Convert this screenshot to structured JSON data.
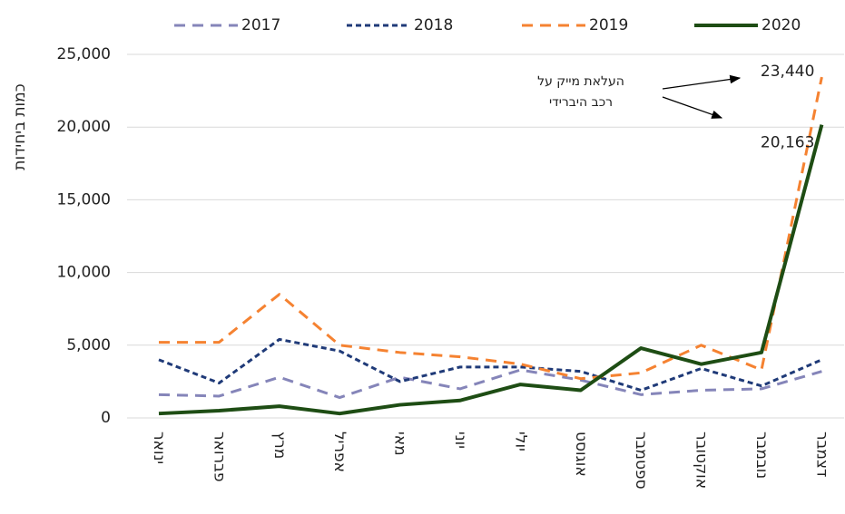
{
  "chart_data": {
    "type": "line",
    "y_label": "כמות ביחידות",
    "categories": [
      "ינואר",
      "פברואר",
      "מרץ",
      "אפריל",
      "מאי",
      "יוני",
      "יולי",
      "אוגוסט",
      "ספטמבר",
      "אוקטובר",
      "נובמבר",
      "דצמבר"
    ],
    "series": [
      {
        "name": "2017",
        "color": "#8585b9",
        "dash": "12,8",
        "width": 3,
        "values": [
          1600,
          1500,
          2800,
          1400,
          2800,
          2000,
          3300,
          2600,
          1600,
          1900,
          2000,
          3200
        ]
      },
      {
        "name": "2018",
        "color": "#1f3a78",
        "dash": "6,4",
        "width": 3,
        "values": [
          4000,
          2400,
          5400,
          4600,
          2500,
          3500,
          3500,
          3200,
          1900,
          3400,
          2200,
          4000
        ]
      },
      {
        "name": "2019",
        "color": "#f58231",
        "dash": "12,8",
        "width": 3,
        "values": [
          5200,
          5200,
          8500,
          5000,
          4500,
          4200,
          3700,
          2700,
          3100,
          5000,
          3300,
          23440
        ],
        "value_labels": [
          null,
          null,
          null,
          null,
          null,
          null,
          null,
          null,
          null,
          null,
          null,
          "23,440"
        ]
      },
      {
        "name": "2020",
        "color": "#1e4d14",
        "dash": null,
        "width": 4,
        "values": [
          300,
          500,
          800,
          300,
          900,
          1200,
          2300,
          1900,
          4800,
          3700,
          4500,
          20163
        ],
        "value_labels": [
          null,
          null,
          null,
          null,
          null,
          null,
          null,
          null,
          null,
          null,
          null,
          "20,163"
        ]
      }
    ],
    "annotation": [
      "העלאת מייק על",
      "רכב היברידי"
    ],
    "ylim": [
      0,
      25000
    ],
    "yticks": [
      0,
      {
        "value": 5000,
        "label": "5,000"
      },
      {
        "value": 10000,
        "label": "10,000"
      },
      {
        "value": 15000,
        "label": "15,000"
      },
      {
        "value": 20000,
        "label": "20,000"
      },
      {
        "value": 25000,
        "label": "25,000"
      }
    ],
    "grid": true,
    "legend": "top"
  }
}
